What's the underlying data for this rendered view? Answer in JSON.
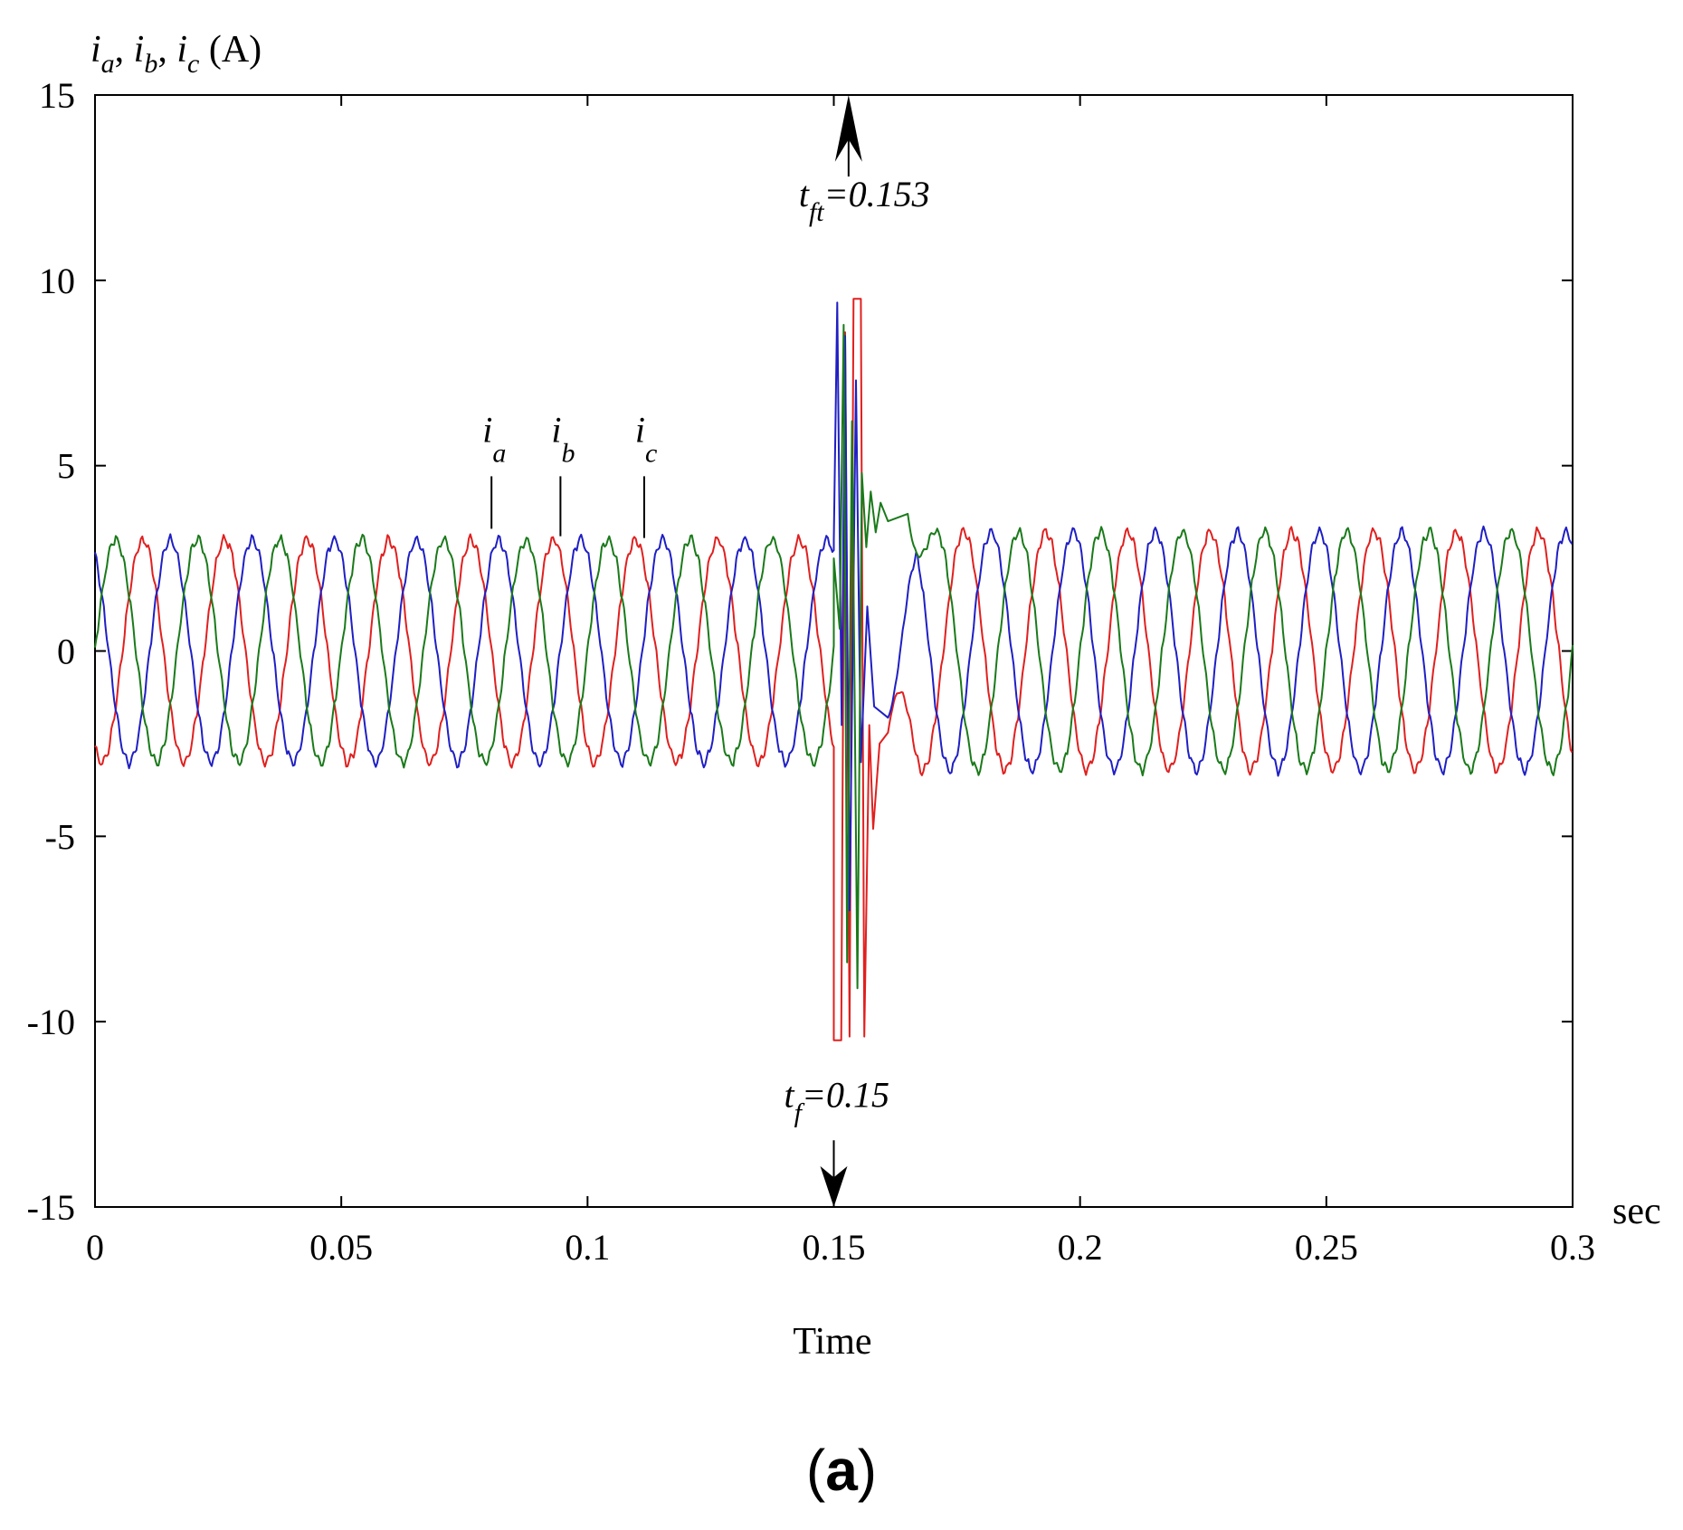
{
  "chart_data": {
    "type": "line",
    "xlabel": "Time",
    "x_unit": "sec",
    "ylabel_parts": [
      {
        "text": "i",
        "sub": "a"
      },
      {
        "text": "i",
        "sub": "b"
      },
      {
        "text": "i",
        "sub": "c"
      }
    ],
    "ylabel_unit": "(A)",
    "xlim": [
      0,
      0.3
    ],
    "ylim": [
      -15,
      15
    ],
    "x_ticks": [
      "0",
      "0.05",
      "0.1",
      "0.15",
      "0.2",
      "0.25",
      "0.3"
    ],
    "y_ticks": [
      "15",
      "10",
      "5",
      "0",
      "-5",
      "-10",
      "-15"
    ],
    "grid": false,
    "series": [
      {
        "name": "i_a",
        "color": "#e0201f",
        "amplitude": 3.0,
        "phase_deg": -120,
        "frequency_hz": 60
      },
      {
        "name": "i_b",
        "color": "#1f1fc4",
        "amplitude": 3.0,
        "phase_deg": 120,
        "frequency_hz": 60
      },
      {
        "name": "i_c",
        "color": "#1a7a1a",
        "amplitude": 3.0,
        "phase_deg": 0,
        "frequency_hz": 60
      }
    ],
    "fault_transient": {
      "a": [
        [
          0.15,
          -10.5
        ],
        [
          0.1515,
          -10.5
        ],
        [
          0.1523,
          8.6
        ],
        [
          0.1532,
          -10.4
        ],
        [
          0.154,
          9.5
        ],
        [
          0.1555,
          9.5
        ],
        [
          0.1562,
          -10.4
        ],
        [
          0.1572,
          -2.0
        ],
        [
          0.158,
          -4.8
        ],
        [
          0.1593,
          -2.5
        ],
        [
          0.161,
          -2.2
        ]
      ],
      "b": [
        [
          0.15,
          3.0
        ],
        [
          0.1507,
          9.4
        ],
        [
          0.1516,
          -2.0
        ],
        [
          0.1523,
          8.5
        ],
        [
          0.1532,
          -7.0
        ],
        [
          0.1545,
          7.3
        ],
        [
          0.1555,
          -3.0
        ],
        [
          0.1568,
          1.2
        ],
        [
          0.1582,
          -1.5
        ],
        [
          0.161,
          -1.8
        ]
      ],
      "c": [
        [
          0.15,
          2.5
        ],
        [
          0.1512,
          0.6
        ],
        [
          0.152,
          8.8
        ],
        [
          0.1527,
          -8.4
        ],
        [
          0.1537,
          6.2
        ],
        [
          0.1548,
          -9.1
        ],
        [
          0.1557,
          4.8
        ],
        [
          0.1566,
          2.8
        ],
        [
          0.1575,
          4.3
        ],
        [
          0.1585,
          3.2
        ],
        [
          0.1595,
          4.0
        ],
        [
          0.161,
          3.5
        ],
        [
          0.165,
          3.7
        ]
      ]
    },
    "annotations": [
      {
        "label": "i",
        "sub": "a",
        "x": 0.0805,
        "y": 3.2
      },
      {
        "label": "i",
        "sub": "b",
        "x": 0.0945,
        "y": 3.0
      },
      {
        "label": "i",
        "sub": "c",
        "x": 0.1115,
        "y": 2.95
      }
    ],
    "markers": [
      {
        "name": "t_ft",
        "label": "t",
        "sub": "ft",
        "value_text": "=0.153",
        "x": 0.153,
        "arrow": "up"
      },
      {
        "name": "t_f",
        "label": "t",
        "sub": "f",
        "value_text": "=0.15",
        "x": 0.15,
        "arrow": "down"
      }
    ]
  },
  "panel_label": {
    "open": "(",
    "letter": "a",
    "close": ")"
  }
}
